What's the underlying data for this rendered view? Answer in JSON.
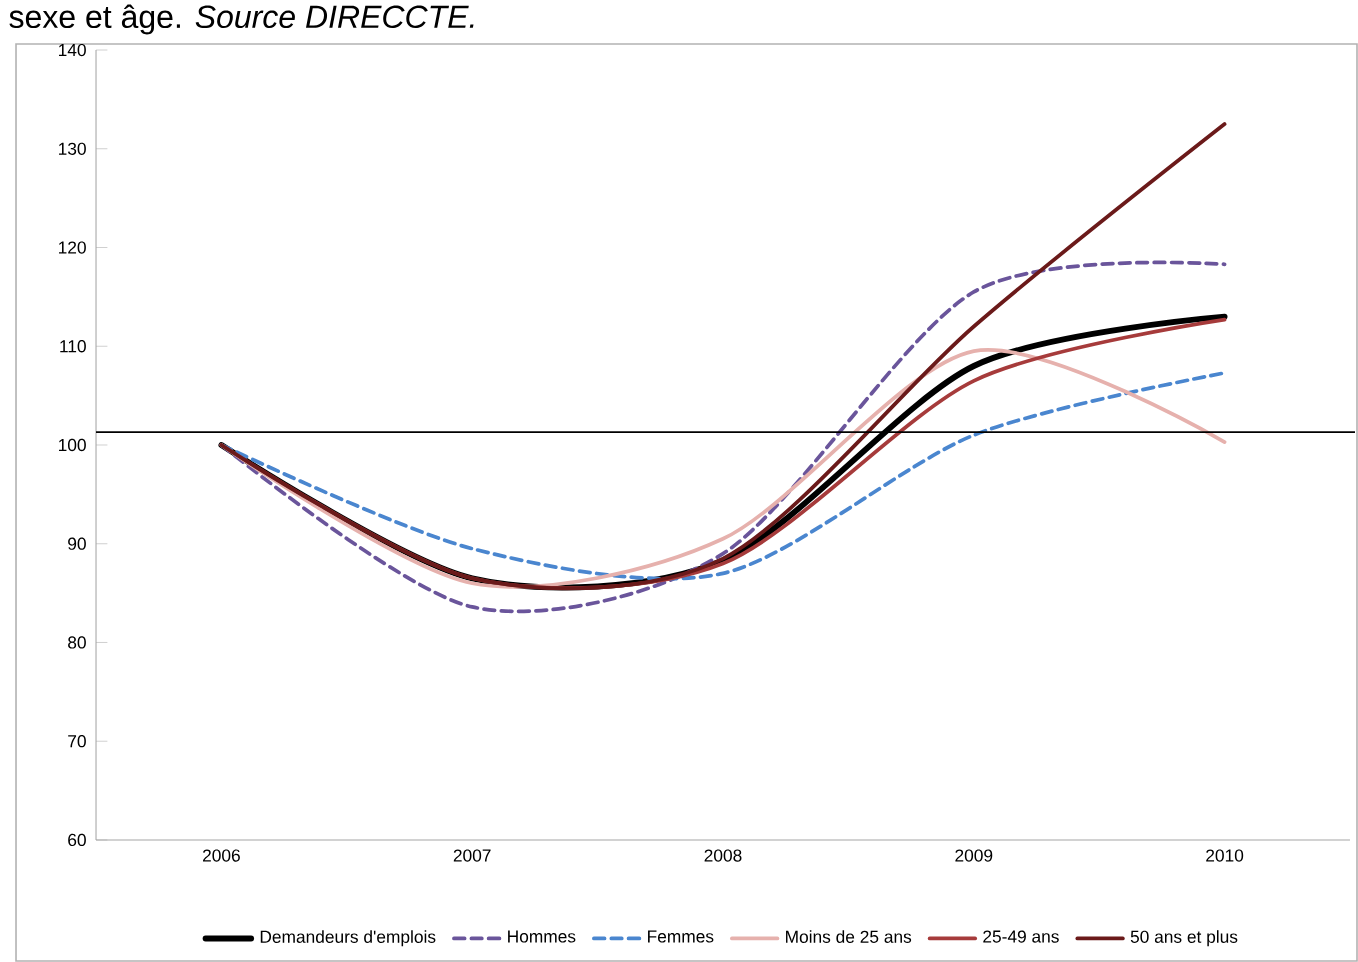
{
  "chart_data": {
    "type": "line",
    "annotations": [
      "sexe et âge. *Source DIRECCTE.*"
    ],
    "categories": [
      "2006",
      "2007",
      "2008",
      "2009",
      "2010"
    ],
    "series": [
      {
        "name": "Demandeurs d'emplois",
        "color": "#000000",
        "line_style": "solid",
        "values": [
          100,
          86.5,
          88.3,
          108,
          113
        ]
      },
      {
        "name": "Hommes",
        "color": "#6a559b",
        "line_style": "dashed",
        "values": [
          100,
          83.6,
          89,
          115.5,
          118.3
        ]
      },
      {
        "name": "Femmes",
        "color": "#4a86cf",
        "line_style": "dashed",
        "values": [
          100,
          89.5,
          87,
          101,
          107.3
        ]
      },
      {
        "name": "Moins de 25 ans",
        "color": "#e6b1ad",
        "line_style": "solid",
        "values": [
          100,
          86,
          90.5,
          109.5,
          100.3
        ]
      },
      {
        "name": "25-49 ans",
        "color": "#a63b3b",
        "line_style": "solid",
        "values": [
          100,
          86.5,
          88,
          106.5,
          112.7
        ]
      },
      {
        "name": "50 ans et plus",
        "color": "#6b1a1a",
        "line_style": "solid",
        "values": [
          100,
          86.5,
          88.5,
          112,
          132.5
        ]
      }
    ],
    "ylim": [
      60,
      140
    ],
    "yticks": [
      60,
      70,
      80,
      90,
      100,
      110,
      120,
      130,
      140
    ],
    "ref_lines": [
      {
        "axis": "y",
        "value": 101.3,
        "color": "#000000"
      }
    ],
    "grid": false,
    "legend": "bottom",
    "marker": "none"
  }
}
